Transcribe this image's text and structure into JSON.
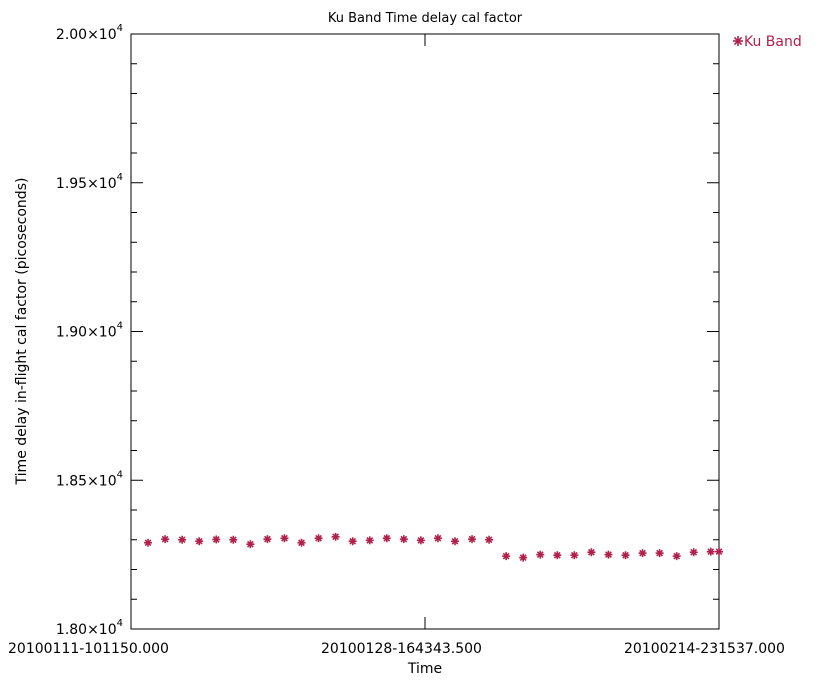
{
  "chart_data": {
    "type": "scatter",
    "title": "Ku Band Time delay cal factor",
    "xlabel": "Time",
    "ylabel": "Time delay in-flight cal factor (picoseconds)",
    "ylim": [
      18000,
      20000
    ],
    "xlim": [
      0,
      1
    ],
    "x_tick_labels": [
      "20100111-101150.000",
      "20100128-164343.500",
      "20100214-231537.000"
    ],
    "x_tick_positions": [
      0,
      0.5,
      1
    ],
    "y_ticks": [
      {
        "value": 18000,
        "mantissa": "1.80×10",
        "exp": "4"
      },
      {
        "value": 18500,
        "mantissa": "1.85×10",
        "exp": "4"
      },
      {
        "value": 19000,
        "mantissa": "1.90×10",
        "exp": "4"
      },
      {
        "value": 19500,
        "mantissa": "1.95×10",
        "exp": "4"
      },
      {
        "value": 20000,
        "mantissa": "2.00×10",
        "exp": "4"
      }
    ],
    "grid": false,
    "legend_position": "top-right outside",
    "series": [
      {
        "name": "Ku Band",
        "color": "#b0204a",
        "marker": "asterisk",
        "x": [
          0.029,
          0.058,
          0.087,
          0.116,
          0.145,
          0.174,
          0.203,
          0.232,
          0.261,
          0.29,
          0.319,
          0.348,
          0.377,
          0.406,
          0.435,
          0.464,
          0.493,
          0.522,
          0.551,
          0.58,
          0.609,
          0.638,
          0.667,
          0.696,
          0.725,
          0.754,
          0.783,
          0.812,
          0.841,
          0.87,
          0.899,
          0.928,
          0.957,
          0.986,
          1.0
        ],
        "y": [
          18290,
          18302,
          18300,
          18295,
          18301,
          18300,
          18285,
          18302,
          18305,
          18290,
          18305,
          18310,
          18295,
          18298,
          18305,
          18302,
          18298,
          18305,
          18295,
          18302,
          18300,
          18245,
          18240,
          18250,
          18248,
          18248,
          18258,
          18250,
          18248,
          18255,
          18255,
          18245,
          18258,
          18260,
          18260
        ]
      }
    ]
  }
}
